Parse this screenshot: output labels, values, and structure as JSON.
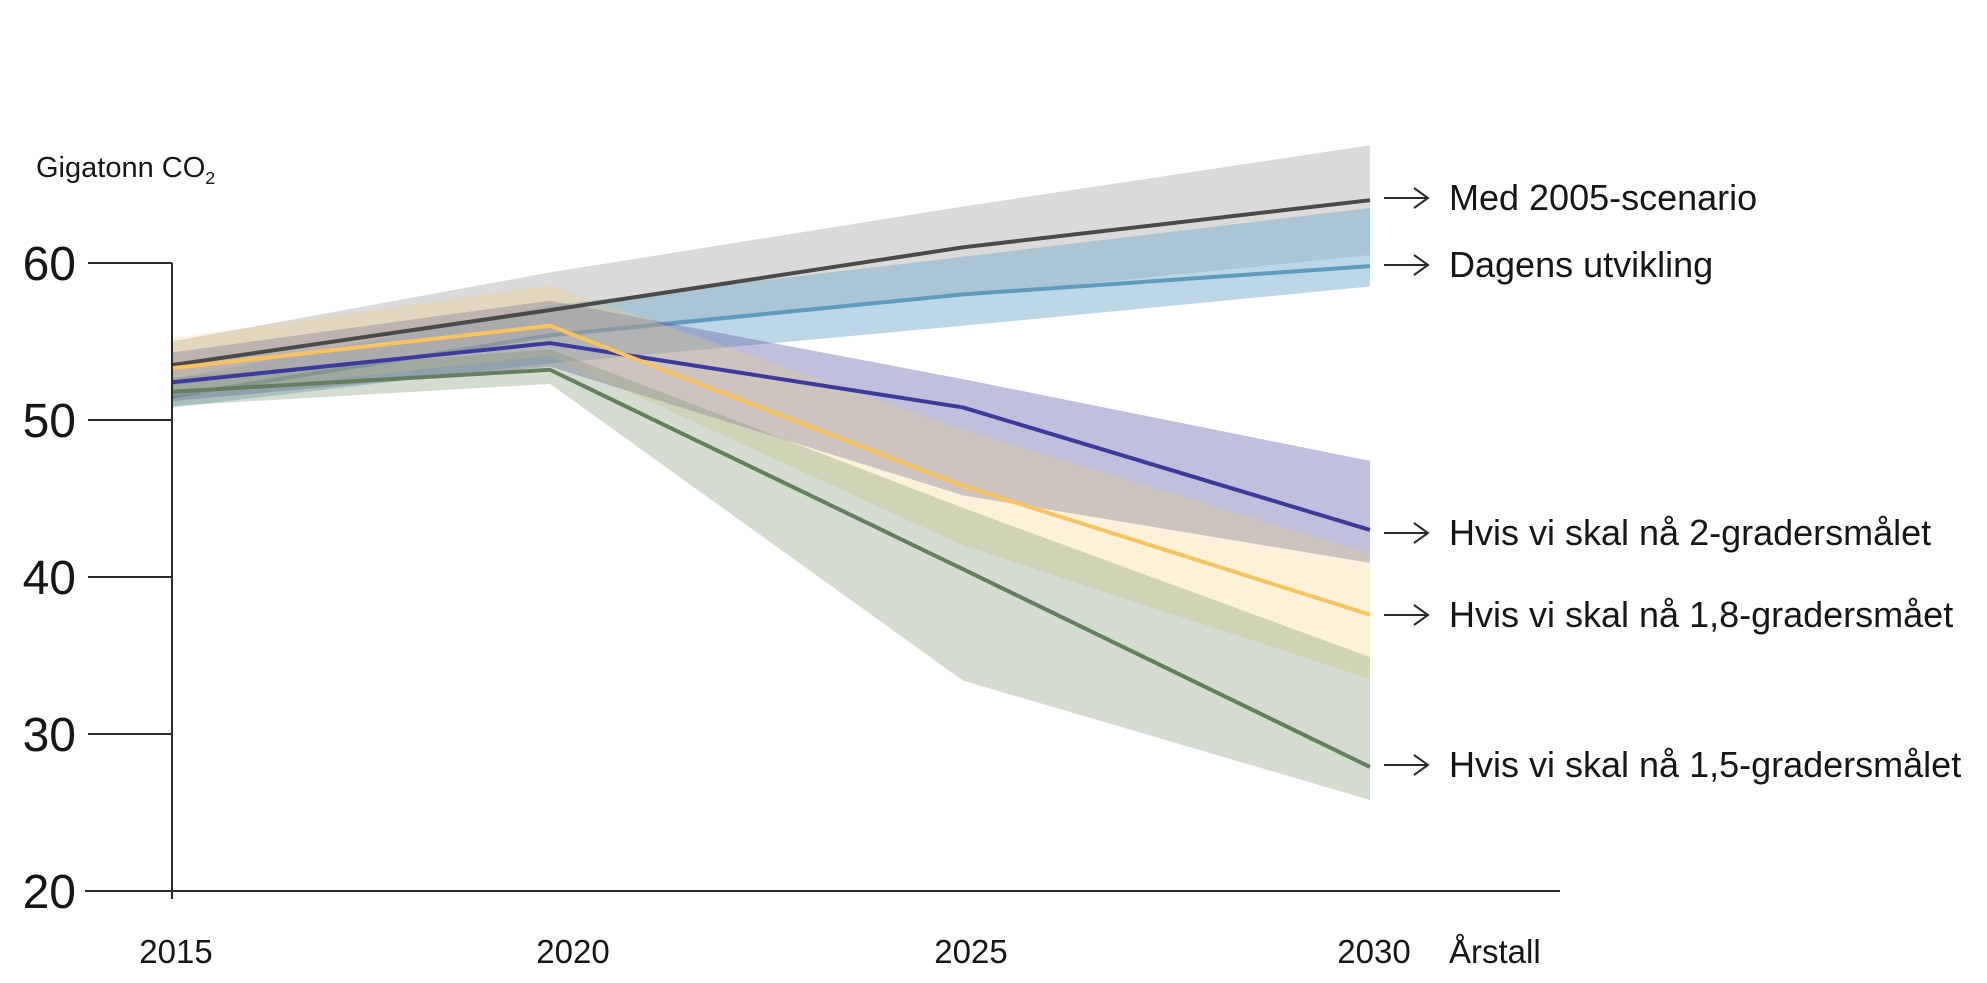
{
  "page": {
    "background": "#ffffff"
  },
  "chart_data": {
    "type": "line",
    "title": "",
    "ylabel_main": "Gigatonn CO",
    "ylabel_sub": "2",
    "xlabel": "Årstall",
    "x": [
      2015,
      2020,
      2025,
      2030
    ],
    "x_labels": [
      "2015",
      "2020",
      "2025",
      "2030"
    ],
    "ylim": [
      20,
      60
    ],
    "yticks": [
      60,
      50,
      40,
      30,
      20
    ],
    "grid": false,
    "legend_position": "right-arrows",
    "axis_color": "#2a2a2a",
    "text_color": "#161616",
    "series": [
      {
        "id": "med-2005-scenario",
        "name": "Med 2005-scenario",
        "line_color": "#4a4a48",
        "band_color": "rgba(150,150,150,0.35)",
        "values": [
          53.5,
          57.0,
          61.0,
          64.0
        ],
        "band_low": [
          52.2,
          55.2,
          57.9,
          60.5
        ],
        "band_high": [
          55.0,
          59.4,
          63.6,
          67.5
        ]
      },
      {
        "id": "dagens-utvikling",
        "name": "Dagens utvikling",
        "line_color": "#5d9cba",
        "band_color": "rgba(125,175,205,0.5)",
        "values": [
          51.5,
          55.4,
          58.0,
          59.8
        ],
        "band_low": [
          50.8,
          53.6,
          56.0,
          58.5
        ],
        "band_high": [
          52.6,
          57.3,
          60.4,
          63.5
        ]
      },
      {
        "id": "to-gradersmalet",
        "name": "Hvis vi skal nå 2-gradersmålet",
        "line_color": "#3c3b9c",
        "band_color": "rgba(105,102,172,0.42)",
        "values": [
          52.4,
          54.9,
          50.8,
          43.0
        ],
        "band_low": [
          51.2,
          53.4,
          45.2,
          40.9
        ],
        "band_high": [
          54.3,
          57.6,
          52.6,
          47.4
        ]
      },
      {
        "id": "en-komma-atte-gradersmalet",
        "name": "Hvis vi skal nå 1,8-gradersmået",
        "line_color": "#f8c45f",
        "band_color": "rgba(240,210,120,0.28)",
        "values": [
          53.3,
          56.0,
          45.8,
          37.6
        ],
        "band_low": [
          51.5,
          54.1,
          42.0,
          33.5
        ],
        "band_high": [
          55.2,
          58.6,
          49.4,
          41.5
        ]
      },
      {
        "id": "en-komma-fem-gradersmalet",
        "name": "Hvis vi skal nå 1,5-gradersmålet",
        "line_color": "#647f5c",
        "band_color": "rgba(120,150,110,0.33)",
        "values": [
          51.8,
          53.2,
          40.5,
          27.9
        ],
        "band_low": [
          50.9,
          52.3,
          33.4,
          25.8
        ],
        "band_high": [
          52.7,
          54.5,
          44.4,
          34.9
        ]
      }
    ]
  }
}
